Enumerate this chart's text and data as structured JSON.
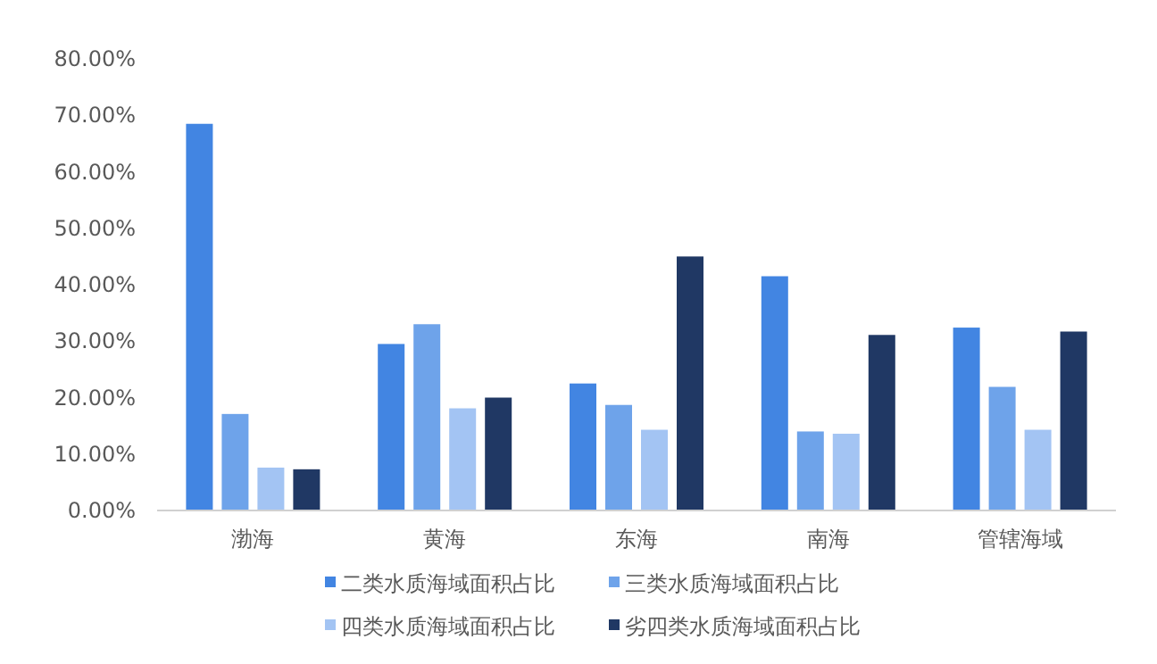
{
  "chart_data": {
    "type": "bar",
    "categories": [
      "渤海",
      "黄海",
      "东海",
      "南海",
      "管辖海域"
    ],
    "series": [
      {
        "name": "二类水质海域面积占比",
        "color": "#4285e2",
        "values": [
          68.5,
          29.5,
          22.5,
          41.5,
          32.4
        ]
      },
      {
        "name": "三类水质海域面积占比",
        "color": "#6ea3ea",
        "values": [
          17.1,
          33.0,
          18.7,
          14.0,
          21.9
        ]
      },
      {
        "name": "四类水质海域面积占比",
        "color": "#a3c4f3",
        "values": [
          7.6,
          18.1,
          14.3,
          13.6,
          14.3
        ]
      },
      {
        "name": "劣四类水质海域面积占比",
        "color": "#203864",
        "values": [
          7.3,
          20.0,
          45.0,
          31.1,
          31.7
        ]
      }
    ],
    "ylim": [
      0,
      80
    ],
    "yticks": [
      {
        "value": 0,
        "label": "0.00%"
      },
      {
        "value": 10,
        "label": "10.00%"
      },
      {
        "value": 20,
        "label": "20.00%"
      },
      {
        "value": 30,
        "label": "30.00%"
      },
      {
        "value": 40,
        "label": "40.00%"
      },
      {
        "value": 50,
        "label": "50.00%"
      },
      {
        "value": 60,
        "label": "60.00%"
      },
      {
        "value": 70,
        "label": "70.00%"
      },
      {
        "value": 80,
        "label": "80.00%"
      }
    ],
    "grid": false,
    "legend": "bottom"
  }
}
